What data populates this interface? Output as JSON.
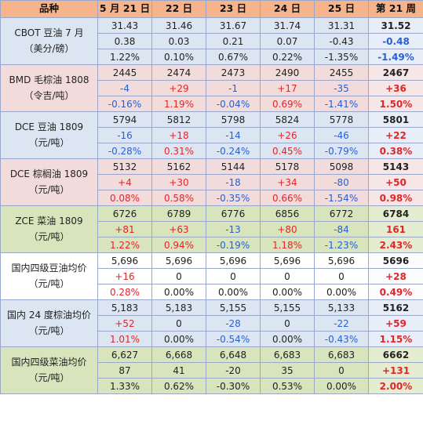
{
  "headers": [
    "品种",
    "5 月 21 日",
    "22 日",
    "23 日",
    "24 日",
    "25 日",
    "第 21 周"
  ],
  "groups": [
    {
      "name": "CBOT 豆油 7 月\n（美分/磅）",
      "style": "g-blue",
      "rows": [
        {
          "values": [
            "31.43",
            "31.46",
            "31.67",
            "31.74",
            "31.31",
            "31.52"
          ],
          "colors": [
            "dark",
            "dark",
            "dark",
            "dark",
            "dark",
            "dark"
          ]
        },
        {
          "values": [
            "0.38",
            "0.03",
            "0.21",
            "0.07",
            "-0.43",
            "-0.48"
          ],
          "colors": [
            "dark",
            "dark",
            "dark",
            "dark",
            "dark",
            "blue"
          ]
        },
        {
          "values": [
            "1.22%",
            "0.10%",
            "0.67%",
            "0.22%",
            "-1.35%",
            "-1.49%"
          ],
          "colors": [
            "dark",
            "dark",
            "dark",
            "dark",
            "dark",
            "blue"
          ]
        }
      ]
    },
    {
      "name": "BMD 毛棕油 1808\n（令吉/吨）",
      "style": "g-pink",
      "rows": [
        {
          "values": [
            "2445",
            "2474",
            "2473",
            "2490",
            "2455",
            "2467"
          ],
          "colors": [
            "dark",
            "dark",
            "dark",
            "dark",
            "dark",
            "dark"
          ]
        },
        {
          "values": [
            "-4",
            "+29",
            "-1",
            "+17",
            "-35",
            "+36"
          ],
          "colors": [
            "blue",
            "red",
            "blue",
            "red",
            "blue",
            "red"
          ]
        },
        {
          "values": [
            "-0.16%",
            "1.19%",
            "-0.04%",
            "0.69%",
            "-1.41%",
            "1.50%"
          ],
          "colors": [
            "blue",
            "red",
            "blue",
            "red",
            "blue",
            "red"
          ]
        }
      ]
    },
    {
      "name": "DCE 豆油 1809\n（元/吨）",
      "style": "g-blue",
      "rows": [
        {
          "values": [
            "5794",
            "5812",
            "5798",
            "5824",
            "5778",
            "5801"
          ],
          "colors": [
            "dark",
            "dark",
            "dark",
            "dark",
            "dark",
            "dark"
          ]
        },
        {
          "values": [
            "-16",
            "+18",
            "-14",
            "+26",
            "-46",
            "+22"
          ],
          "colors": [
            "blue",
            "red",
            "blue",
            "red",
            "blue",
            "red"
          ]
        },
        {
          "values": [
            "-0.28%",
            "0.31%",
            "-0.24%",
            "0.45%",
            "-0.79%",
            "0.38%"
          ],
          "colors": [
            "blue",
            "red",
            "blue",
            "red",
            "blue",
            "red"
          ]
        }
      ]
    },
    {
      "name": "DCE 棕榈油 1809\n（元/吨）",
      "style": "g-pink",
      "rows": [
        {
          "values": [
            "5132",
            "5162",
            "5144",
            "5178",
            "5098",
            "5143"
          ],
          "colors": [
            "dark",
            "dark",
            "dark",
            "dark",
            "dark",
            "dark"
          ]
        },
        {
          "values": [
            "+4",
            "+30",
            "-18",
            "+34",
            "-80",
            "+50"
          ],
          "colors": [
            "red",
            "red",
            "blue",
            "red",
            "blue",
            "red"
          ]
        },
        {
          "values": [
            "0.08%",
            "0.58%",
            "-0.35%",
            "0.66%",
            "-1.54%",
            "0.98%"
          ],
          "colors": [
            "red",
            "red",
            "blue",
            "red",
            "blue",
            "red"
          ]
        }
      ]
    },
    {
      "name": "ZCE 菜油 1809\n（元/吨）",
      "style": "g-green",
      "rows": [
        {
          "values": [
            "6726",
            "6789",
            "6776",
            "6856",
            "6772",
            "6784"
          ],
          "colors": [
            "dark",
            "dark",
            "dark",
            "dark",
            "dark",
            "dark"
          ]
        },
        {
          "values": [
            "+81",
            "+63",
            "-13",
            "+80",
            "-84",
            "161"
          ],
          "colors": [
            "red",
            "red",
            "blue",
            "red",
            "blue",
            "red"
          ]
        },
        {
          "values": [
            "1.22%",
            "0.94%",
            "-0.19%",
            "1.18%",
            "-1.23%",
            "2.43%"
          ],
          "colors": [
            "red",
            "red",
            "blue",
            "red",
            "blue",
            "red"
          ]
        }
      ]
    },
    {
      "name": "国内四级豆油均价\n（元/吨）",
      "style": "g-white",
      "rows": [
        {
          "values": [
            "5,696",
            "5,696",
            "5,696",
            "5,696",
            "5,696",
            "5696"
          ],
          "colors": [
            "dark",
            "dark",
            "dark",
            "dark",
            "dark",
            "dark"
          ]
        },
        {
          "values": [
            "+16",
            "0",
            "0",
            "0",
            "0",
            "+28"
          ],
          "colors": [
            "red",
            "dark",
            "dark",
            "dark",
            "dark",
            "red"
          ]
        },
        {
          "values": [
            "0.28%",
            "0.00%",
            "0.00%",
            "0.00%",
            "0.00%",
            "0.49%"
          ],
          "colors": [
            "red",
            "dark",
            "dark",
            "dark",
            "dark",
            "red"
          ]
        }
      ]
    },
    {
      "name": "国内 24 度棕油均价\n（元/吨）",
      "style": "g-blue",
      "rows": [
        {
          "values": [
            "5,183",
            "5,183",
            "5,155",
            "5,155",
            "5,133",
            "5162"
          ],
          "colors": [
            "dark",
            "dark",
            "dark",
            "dark",
            "dark",
            "dark"
          ]
        },
        {
          "values": [
            "+52",
            "0",
            "-28",
            "0",
            "-22",
            "+59"
          ],
          "colors": [
            "red",
            "dark",
            "blue",
            "dark",
            "blue",
            "red"
          ]
        },
        {
          "values": [
            "1.01%",
            "0.00%",
            "-0.54%",
            "0.00%",
            "-0.43%",
            "1.15%"
          ],
          "colors": [
            "red",
            "dark",
            "blue",
            "dark",
            "blue",
            "red"
          ]
        }
      ]
    },
    {
      "name": "国内四级菜油均价\n（元/吨）",
      "style": "g-green",
      "rows": [
        {
          "values": [
            "6,627",
            "6,668",
            "6,648",
            "6,683",
            "6,683",
            "6662"
          ],
          "colors": [
            "dark",
            "dark",
            "dark",
            "dark",
            "dark",
            "dark"
          ]
        },
        {
          "values": [
            "87",
            "41",
            "-20",
            "35",
            "0",
            "+131"
          ],
          "colors": [
            "dark",
            "dark",
            "dark",
            "dark",
            "dark",
            "red"
          ]
        },
        {
          "values": [
            "1.33%",
            "0.62%",
            "-0.30%",
            "0.53%",
            "0.00%",
            "2.00%"
          ],
          "colors": [
            "dark",
            "dark",
            "dark",
            "dark",
            "dark",
            "red"
          ]
        }
      ]
    }
  ]
}
